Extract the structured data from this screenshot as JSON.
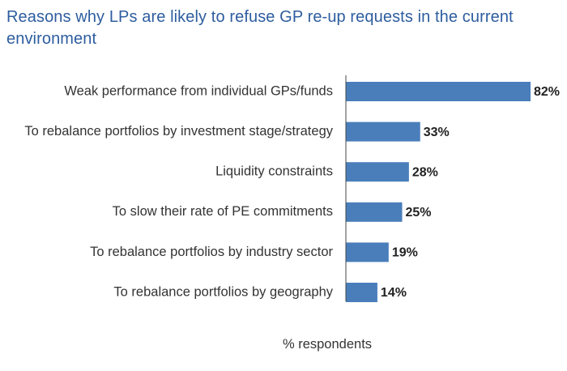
{
  "chart_data": {
    "type": "bar",
    "orientation": "horizontal",
    "title": "Reasons why LPs are likely to refuse GP re-up requests in the current environment",
    "xlabel": "% respondents",
    "ylabel": "",
    "categories": [
      "Weak performance from individual GPs/funds",
      "To rebalance portfolios by investment stage/strategy",
      "Liquidity constraints",
      "To slow their rate of PE commitments",
      "To rebalance portfolios by industry sector",
      "To rebalance portfolios by geography"
    ],
    "values": [
      82,
      33,
      28,
      25,
      19,
      14
    ],
    "value_labels": [
      "82%",
      "33%",
      "28%",
      "25%",
      "19%",
      "14%"
    ],
    "xlim": [
      0,
      100
    ],
    "grid": false,
    "legend": "none",
    "bar_color": "#4a7ebb",
    "title_color": "#2e5d9f"
  }
}
